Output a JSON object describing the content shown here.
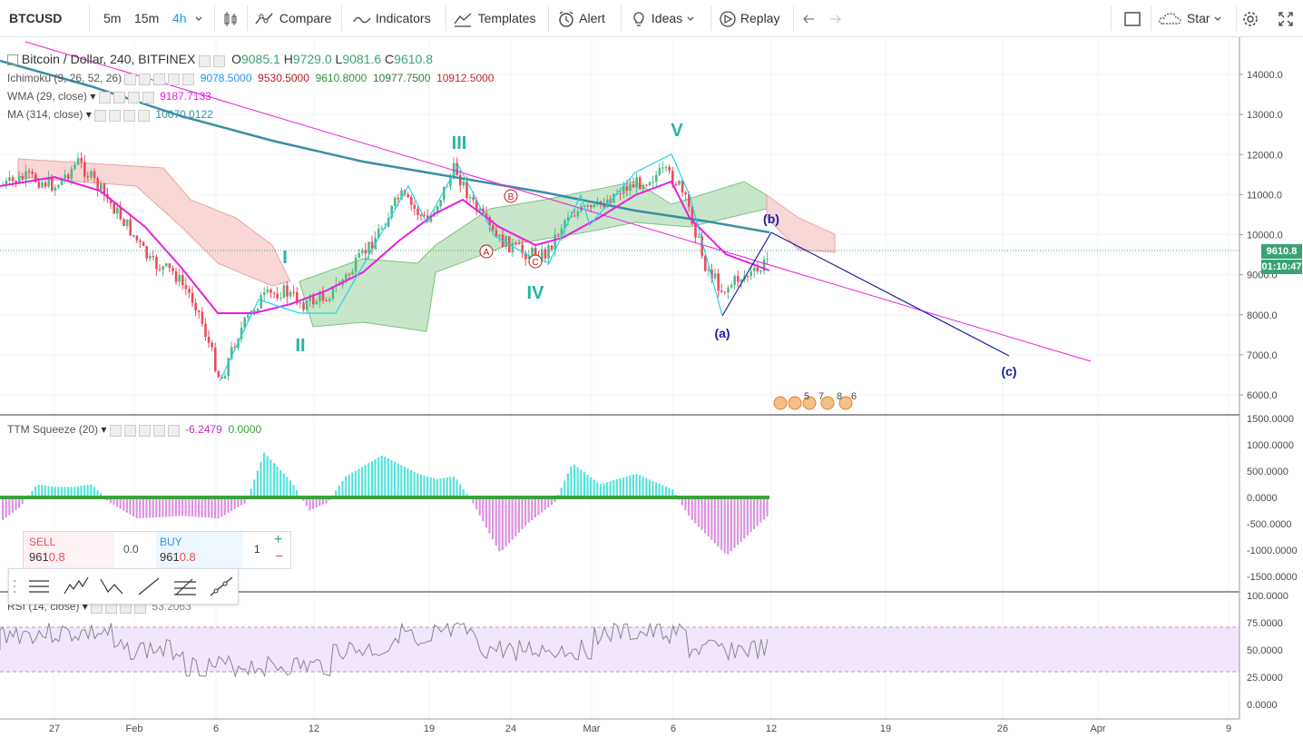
{
  "toolbar": {
    "symbol": "BTCUSD",
    "intervals": [
      "5m",
      "15m",
      "4h"
    ],
    "compare": "Compare",
    "indicators": "Indicators",
    "templates": "Templates",
    "alert": "Alert",
    "ideas": "Ideas",
    "replay": "Replay",
    "star": "Star"
  },
  "legend": {
    "title": "Bitcoin / Dollar, 240, BITFINEX",
    "o_label": "O",
    "o": "9085.1",
    "h_label": "H",
    "h": "9729.0",
    "l_label": "L",
    "l": "9081.6",
    "c_label": "C",
    "c": "9610.8",
    "ichimoku": {
      "name": "Ichimoku (9, 26, 52, 26)",
      "v1": "9078.5000",
      "v2": "9530.5000",
      "v3": "9610.8000",
      "v4": "10977.7500",
      "v5": "10912.5000"
    },
    "wma": {
      "name": "WMA (29, close)",
      "v": "9187.7133"
    },
    "ma": {
      "name": "MA (314, close)",
      "v": "10070.0122"
    },
    "ttm": {
      "name": "TTM Squeeze (20)",
      "v1": "-6.2479",
      "v2": "0.0000"
    },
    "rsi": {
      "name": "RSI (14, close)",
      "v": "53.2063"
    }
  },
  "price_axis": [
    "14000.0",
    "13000.0",
    "12000.0",
    "11000.0",
    "10000.0",
    "9000.0",
    "8000.0",
    "7000.0",
    "6000.0"
  ],
  "ttm_axis": [
    "1500.0000",
    "1000.0000",
    "500.0000",
    "0.0000",
    "-500.0000",
    "-1000.0000",
    "-1500.0000"
  ],
  "rsi_axis": [
    "100.0000",
    "75.0000",
    "50.0000",
    "25.0000",
    "0.0000"
  ],
  "time_axis": [
    "27",
    "Feb",
    "6",
    "12",
    "19",
    "24",
    "Mar",
    "6",
    "12",
    "19",
    "26",
    "Apr",
    "9"
  ],
  "price_tag": {
    "price": "9610.8",
    "countdown": "01:10:47"
  },
  "trade": {
    "sell_label": "SELL",
    "sell_price_a": "961",
    "sell_price_b": "0.8",
    "spread": "0.0",
    "buy_label": "BUY",
    "buy_price_a": "961",
    "buy_price_b": "0.8",
    "qty": "1",
    "plus": "+",
    "minus": "−"
  },
  "waves": {
    "major": [
      "I",
      "II",
      "III",
      "IV",
      "V"
    ],
    "corrective": [
      "(a)",
      "(b)",
      "(c)"
    ],
    "abc": [
      "A",
      "B",
      "C"
    ]
  },
  "events": [
    "5",
    "7",
    "8",
    "6"
  ],
  "colors": {
    "up": "#53b987",
    "down": "#eb4d5c",
    "wma": "#e91ee0",
    "ma": "#3b8ea5",
    "ichi_green": "#c8e6c9",
    "ichi_red": "#f8d7d6",
    "wave_cyan": "#22b5a6",
    "wave_blue": "#1a1aa6",
    "rsi_band": "#f1e6fb"
  }
}
